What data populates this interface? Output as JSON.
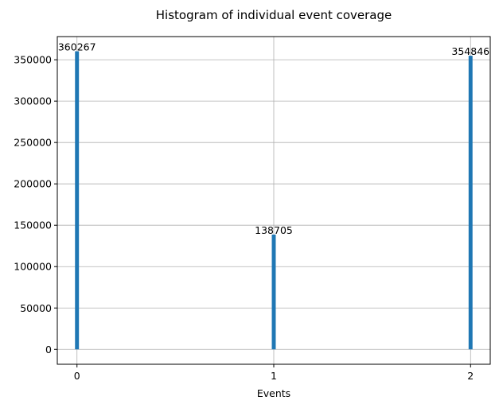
{
  "chart_data": {
    "type": "bar",
    "title": "Histogram of individual event coverage",
    "xlabel": "Events",
    "ylabel": "",
    "categories": [
      "0",
      "1",
      "2"
    ],
    "x": [
      0,
      1,
      2
    ],
    "values": [
      360267,
      138705,
      354846
    ],
    "data_labels": [
      "360267",
      "138705",
      "354846"
    ],
    "xlim": [
      -0.1,
      2.1
    ],
    "ylim": [
      -18000,
      378000
    ],
    "yticks": [
      0,
      50000,
      100000,
      150000,
      200000,
      250000,
      300000,
      350000
    ],
    "ytick_labels": [
      "0",
      "50000",
      "100000",
      "150000",
      "200000",
      "250000",
      "300000",
      "350000"
    ],
    "xticks": [
      0,
      1,
      2
    ],
    "xtick_labels": [
      "0",
      "1",
      "2"
    ],
    "grid": true,
    "bar_color": "#1f77b4",
    "grid_color": "#b0b0b0"
  }
}
